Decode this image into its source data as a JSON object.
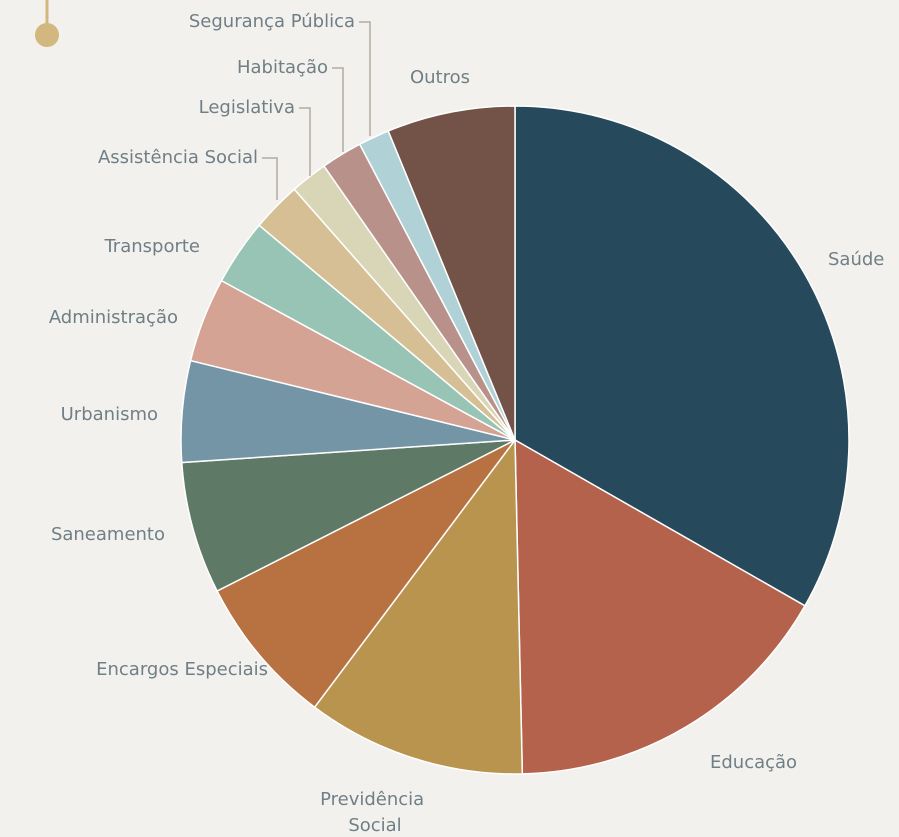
{
  "chart_data": {
    "type": "pie",
    "categories": [
      "Saúde",
      "Educação",
      "Previdência Social",
      "Encargos Especiais",
      "Saneamento",
      "Urbanismo",
      "Administração",
      "Transporte",
      "Assistência Social",
      "Legislativa",
      "Habitação",
      "Segurança Pública",
      "Outros"
    ],
    "values": [
      33.3,
      16.4,
      10.6,
      7.3,
      6.4,
      4.9,
      4.1,
      3.2,
      2.4,
      1.8,
      2.0,
      1.5,
      6.2
    ],
    "colors": [
      "#264a5c",
      "#b5624d",
      "#b8944f",
      "#b87141",
      "#5e7a67",
      "#7395a6",
      "#d4a394",
      "#98c4b5",
      "#d6bf94",
      "#d9d6b8",
      "#b8928a",
      "#b0d2d6",
      "#735248"
    ]
  }
}
